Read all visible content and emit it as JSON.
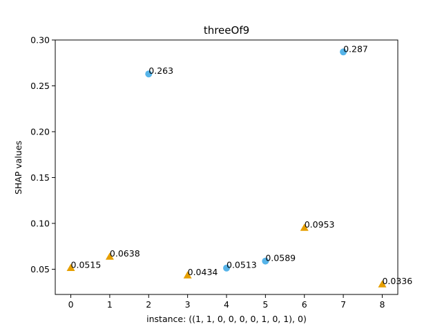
{
  "chart_data": {
    "type": "scatter",
    "title": "threeOf9",
    "xlabel": "instance: ((1, 1, 0, 0, 0, 0, 1, 0, 1), 0)",
    "ylabel": "SHAP values",
    "xlim": [
      -0.4,
      8.4
    ],
    "ylim": [
      0.0225,
      0.3
    ],
    "xticks": [
      0,
      1,
      2,
      3,
      4,
      5,
      6,
      7,
      8
    ],
    "yticks": [
      0.05,
      0.1,
      0.15,
      0.2,
      0.25,
      0.3
    ],
    "ytick_labels": [
      "0.05",
      "0.10",
      "0.15",
      "0.20",
      "0.25",
      "0.30"
    ],
    "grid": false,
    "points": [
      {
        "x": 0,
        "y": 0.0515,
        "label": "0.0515",
        "marker": "triangle",
        "color": "#E69F00"
      },
      {
        "x": 1,
        "y": 0.0638,
        "label": "0.0638",
        "marker": "triangle",
        "color": "#E69F00"
      },
      {
        "x": 2,
        "y": 0.263,
        "label": "0.263",
        "marker": "circle",
        "color": "#56B4E9"
      },
      {
        "x": 3,
        "y": 0.0434,
        "label": "0.0434",
        "marker": "triangle",
        "color": "#E69F00"
      },
      {
        "x": 4,
        "y": 0.0513,
        "label": "0.0513",
        "marker": "circle",
        "color": "#56B4E9"
      },
      {
        "x": 5,
        "y": 0.0589,
        "label": "0.0589",
        "marker": "circle",
        "color": "#56B4E9"
      },
      {
        "x": 6,
        "y": 0.0953,
        "label": "0.0953",
        "marker": "triangle",
        "color": "#E69F00"
      },
      {
        "x": 7,
        "y": 0.287,
        "label": "0.287",
        "marker": "circle",
        "color": "#56B4E9"
      },
      {
        "x": 8,
        "y": 0.0336,
        "label": "0.0336",
        "marker": "triangle",
        "color": "#E69F00"
      }
    ]
  }
}
